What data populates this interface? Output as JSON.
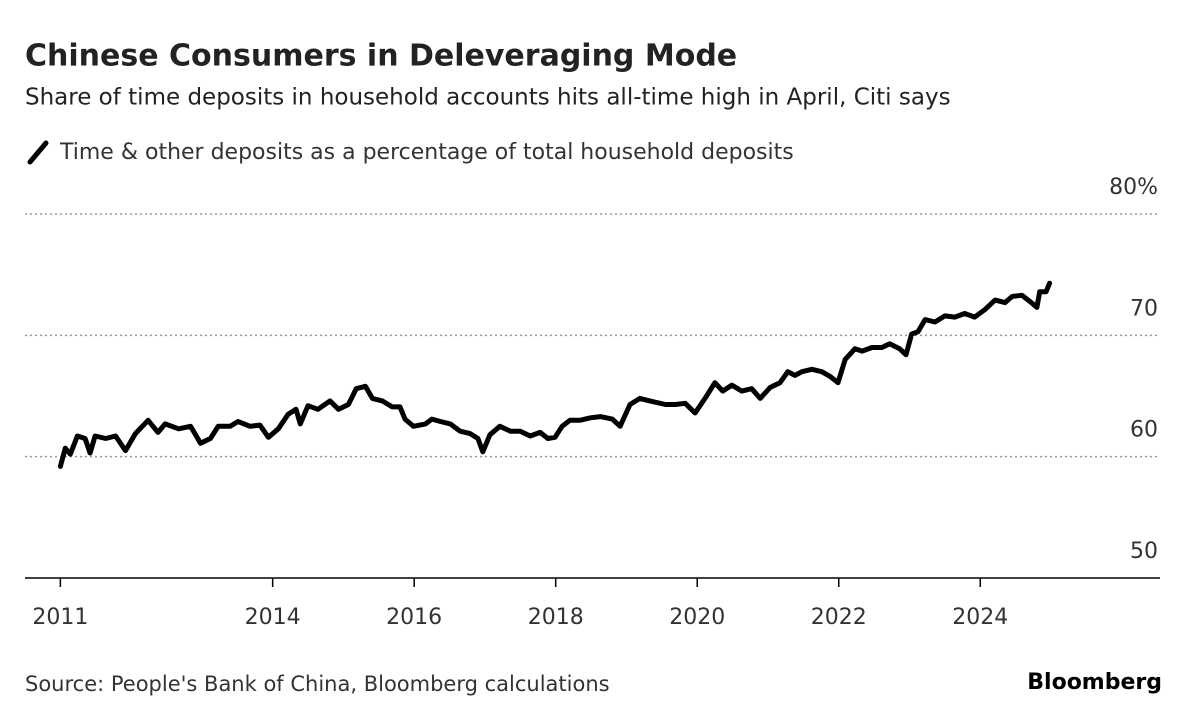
{
  "chart_data": {
    "type": "line",
    "title": "Chinese Consumers in Deleveraging Mode",
    "subtitle": "Share of time deposits in household accounts hits all-time high in April, Citi says",
    "source": "Source: People's Bank of China, Bloomberg calculations",
    "brand": "Bloomberg",
    "xlim": [
      2010.5,
      2026.54
    ],
    "xticks": [
      2011,
      2014,
      2016,
      2018,
      2020,
      2022,
      2024
    ],
    "ylim": [
      50,
      80
    ],
    "yticks": [
      50,
      60,
      70,
      {
        "value": 80,
        "label": "80%"
      }
    ],
    "grid": true,
    "x": [
      2011.0,
      2011.07,
      2011.14,
      2011.24,
      2011.35,
      2011.42,
      2011.49,
      2011.64,
      2011.78,
      2011.92,
      2012.06,
      2012.24,
      2012.38,
      2012.48,
      2012.67,
      2012.84,
      2012.98,
      2013.12,
      2013.23,
      2013.4,
      2013.51,
      2013.68,
      2013.82,
      2013.94,
      2014.08,
      2014.22,
      2014.33,
      2014.39,
      2014.5,
      2014.64,
      2014.81,
      2014.93,
      2015.07,
      2015.18,
      2015.31,
      2015.41,
      2015.55,
      2015.69,
      2015.8,
      2015.87,
      2015.99,
      2016.16,
      2016.25,
      2016.37,
      2016.51,
      2016.65,
      2016.79,
      2016.9,
      2016.97,
      2017.07,
      2017.21,
      2017.36,
      2017.5,
      2017.64,
      2017.78,
      2017.89,
      2017.99,
      2018.09,
      2018.2,
      2018.34,
      2018.49,
      2018.63,
      2018.8,
      2018.91,
      2019.05,
      2019.19,
      2019.33,
      2019.55,
      2019.69,
      2019.83,
      2019.97,
      2020.11,
      2020.25,
      2020.36,
      2020.49,
      2020.63,
      2020.77,
      2020.89,
      2021.03,
      2021.17,
      2021.28,
      2021.38,
      2021.48,
      2021.62,
      2021.76,
      2021.88,
      2021.99,
      2022.09,
      2022.23,
      2022.33,
      2022.47,
      2022.61,
      2022.72,
      2022.86,
      2022.95,
      2023.03,
      2023.12,
      2023.22,
      2023.36,
      2023.5,
      2023.64,
      2023.78,
      2023.92,
      2024.06,
      2024.21,
      2024.35,
      2024.45,
      2024.59,
      2024.7,
      2024.8,
      2024.84,
      2024.93,
      2024.98
    ],
    "series": [
      {
        "name": "Time & other deposits as a percentage of total household deposits",
        "color": "#000000",
        "values": [
          59.2,
          60.7,
          60.2,
          61.7,
          61.5,
          60.3,
          61.7,
          61.5,
          61.7,
          60.5,
          61.9,
          63.0,
          62.0,
          62.7,
          62.3,
          62.5,
          61.1,
          61.5,
          62.5,
          62.5,
          62.9,
          62.5,
          62.6,
          61.6,
          62.3,
          63.5,
          63.9,
          62.7,
          64.2,
          63.9,
          64.6,
          63.9,
          64.3,
          65.6,
          65.8,
          64.8,
          64.6,
          64.1,
          64.1,
          63.1,
          62.5,
          62.7,
          63.1,
          62.9,
          62.7,
          62.1,
          61.9,
          61.5,
          60.4,
          61.8,
          62.5,
          62.1,
          62.1,
          61.7,
          62.0,
          61.5,
          61.6,
          62.5,
          63.0,
          63.0,
          63.2,
          63.3,
          63.1,
          62.5,
          64.3,
          64.8,
          64.6,
          64.3,
          64.3,
          64.4,
          63.6,
          64.8,
          66.1,
          65.4,
          65.9,
          65.4,
          65.6,
          64.8,
          65.7,
          66.1,
          67.0,
          66.7,
          67.0,
          67.2,
          67.0,
          66.6,
          66.1,
          68.0,
          68.9,
          68.7,
          69.0,
          69.0,
          69.3,
          68.9,
          68.4,
          70.1,
          70.3,
          71.3,
          71.1,
          71.6,
          71.5,
          71.8,
          71.5,
          72.1,
          72.9,
          72.7,
          73.2,
          73.3,
          72.8,
          72.3,
          73.6,
          73.6,
          74.3
        ]
      }
    ]
  }
}
